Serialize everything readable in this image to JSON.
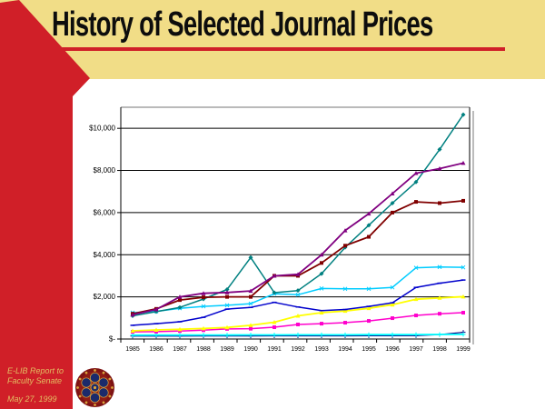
{
  "slide": {
    "title": "History of Selected Journal Prices",
    "footer": {
      "line1": "E-LIB Report to",
      "line2": "Faculty Senate",
      "date": "May 27, 1999"
    },
    "colors": {
      "banner_yellow": "#F1DD87",
      "band_red": "#D01F28",
      "underline_red": "#D01F28",
      "content_white": "#FFFFFF",
      "gridline_black": "#000000",
      "plot_border_gray": "#909090"
    },
    "logo": "rosette-medallion"
  },
  "chart_data": {
    "type": "line",
    "title": "",
    "xlabel": "",
    "ylabel": "",
    "legend": "none",
    "grid": "horizontal",
    "ylim": [
      0,
      11000
    ],
    "categories": [
      "1985",
      "1986",
      "1987",
      "1988",
      "1989",
      "1990",
      "1991",
      "1992",
      "1993",
      "1994",
      "1995",
      "1996",
      "1997",
      "1998",
      "1999"
    ],
    "y_ticks": [
      {
        "label": "$10,000",
        "value": 10000
      },
      {
        "label": "$8,000",
        "value": 8000
      },
      {
        "label": "$6,000",
        "value": 6000
      },
      {
        "label": "$4,000",
        "value": 4000
      },
      {
        "label": "$2,000",
        "value": 2000
      },
      {
        "label": "$-",
        "value": 0
      }
    ],
    "series": [
      {
        "name": "navy",
        "color": "#000080",
        "marker": "plus",
        "width": 1.2,
        "values": [
          140,
          140,
          140,
          145,
          145,
          145,
          150,
          150,
          150,
          150,
          155,
          155,
          160,
          210,
          320
        ]
      },
      {
        "name": "cyan",
        "color": "#00FFFF",
        "marker": "plus",
        "width": 1.8,
        "values": [
          180,
          185,
          185,
          190,
          190,
          195,
          195,
          200,
          200,
          200,
          205,
          205,
          210,
          215,
          220
        ]
      },
      {
        "name": "magenta",
        "color": "#FF00CC",
        "marker": "square",
        "width": 1.5,
        "values": [
          340,
          350,
          380,
          420,
          480,
          490,
          560,
          690,
          730,
          775,
          860,
          990,
          1120,
          1200,
          1250
        ]
      },
      {
        "name": "yellow",
        "color": "#FFFF00",
        "marker": "triangle",
        "width": 1.8,
        "values": [
          390,
          430,
          460,
          500,
          550,
          650,
          800,
          1100,
          1250,
          1330,
          1460,
          1630,
          1890,
          1950,
          2010
        ]
      },
      {
        "name": "blue",
        "color": "#0000CC",
        "marker": "dash",
        "width": 1.5,
        "values": [
          650,
          730,
          820,
          1030,
          1420,
          1500,
          1740,
          1520,
          1350,
          1400,
          1550,
          1720,
          2450,
          2650,
          2800
        ]
      },
      {
        "name": "skyblue",
        "color": "#00CCFF",
        "marker": "x",
        "width": 1.5,
        "values": [
          1250,
          1310,
          1460,
          1550,
          1600,
          1680,
          2150,
          2100,
          2400,
          2380,
          2380,
          2450,
          3380,
          3420,
          3400
        ]
      },
      {
        "name": "teal",
        "color": "#008080",
        "marker": "diamond",
        "width": 1.5,
        "values": [
          1100,
          1300,
          1500,
          1900,
          2350,
          3870,
          2200,
          2300,
          3100,
          4350,
          5400,
          6450,
          7450,
          9000,
          10650
        ]
      },
      {
        "name": "dark-red",
        "color": "#800000",
        "marker": "square",
        "width": 1.8,
        "values": [
          1200,
          1430,
          1850,
          1980,
          2000,
          2000,
          3000,
          3000,
          3610,
          4430,
          4850,
          6000,
          6510,
          6450,
          6560
        ]
      },
      {
        "name": "purple",
        "color": "#800080",
        "marker": "triangle",
        "width": 1.8,
        "values": [
          1150,
          1400,
          2000,
          2170,
          2210,
          2280,
          3000,
          3070,
          4000,
          5150,
          5950,
          6900,
          7870,
          8090,
          8350
        ]
      }
    ]
  }
}
